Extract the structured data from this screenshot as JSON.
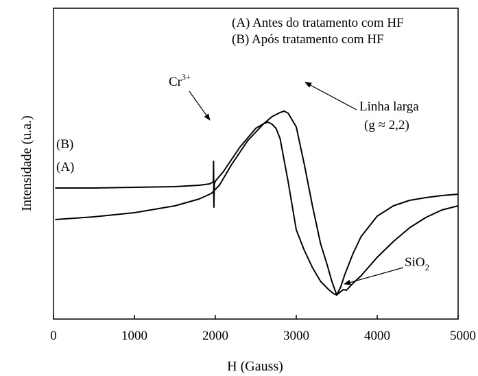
{
  "chart_data": {
    "type": "line",
    "xlabel": "H (Gauss)",
    "ylabel": "Intensidade (u.a.)",
    "xlim": [
      0,
      5000
    ],
    "x_ticks": [
      0,
      1000,
      2000,
      3000,
      4000,
      5000
    ],
    "x_tick_labels": [
      "0",
      "1000",
      "2000",
      "3000",
      "4000",
      "5000"
    ],
    "grid": false,
    "legend_position": "top-right",
    "legend_entries": [
      "(A) Antes do tratamento com HF",
      "(B) Após tratamento com HF"
    ],
    "series": [
      {
        "name": "(A)",
        "x": [
          20,
          500,
          1000,
          1500,
          1800,
          1950,
          2050,
          2200,
          2400,
          2600,
          2700,
          2800,
          2850,
          2900,
          3000,
          3100,
          3200,
          3300,
          3380,
          3440,
          3500,
          3540,
          3580,
          3620,
          3700,
          3800,
          4000,
          4200,
          4400,
          4600,
          4800,
          5000
        ],
        "y": [
          -0.4,
          -0.36,
          -0.3,
          -0.2,
          -0.1,
          -0.02,
          0.1,
          0.4,
          0.75,
          1.0,
          1.1,
          1.16,
          1.18,
          1.15,
          0.95,
          0.4,
          -0.2,
          -0.75,
          -1.05,
          -1.3,
          -1.5,
          -1.46,
          -1.42,
          -1.43,
          -1.33,
          -1.22,
          -0.95,
          -0.72,
          -0.52,
          -0.37,
          -0.26,
          -0.2
        ]
      },
      {
        "name": "(B)",
        "x": [
          20,
          500,
          1000,
          1500,
          1800,
          1930,
          1975,
          1978,
          1982,
          1987,
          2000,
          2100,
          2300,
          2500,
          2600,
          2650,
          2700,
          2750,
          2800,
          2900,
          3000,
          3100,
          3200,
          3300,
          3400,
          3460,
          3500,
          3550,
          3600,
          3700,
          3800,
          4000,
          4200,
          4400,
          4600,
          4800,
          5000
        ],
        "y": [
          0.06,
          0.06,
          0.07,
          0.08,
          0.1,
          0.12,
          0.15,
          0.45,
          -0.22,
          0.12,
          0.16,
          0.3,
          0.65,
          0.93,
          1.0,
          1.02,
          0.99,
          0.93,
          0.78,
          0.15,
          -0.55,
          -0.85,
          -1.1,
          -1.3,
          -1.42,
          -1.48,
          -1.5,
          -1.38,
          -1.2,
          -0.9,
          -0.65,
          -0.35,
          -0.2,
          -0.12,
          -0.08,
          -0.05,
          -0.03
        ]
      }
    ],
    "curve_labels": [
      "(B)",
      "(A)"
    ],
    "annotations": [
      {
        "text": "Cr",
        "superscript": "3+",
        "points_to_x": 1975
      },
      {
        "line1": "Linha larga",
        "line2": "(g ≈ 2,2)",
        "points_to_x": 2950
      },
      {
        "text": "SiO",
        "subscript": "2",
        "points_to_x": 3520
      }
    ]
  }
}
